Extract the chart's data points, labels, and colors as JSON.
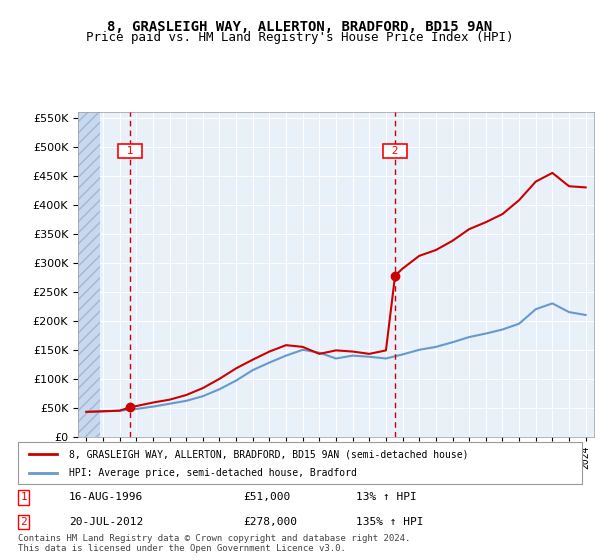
{
  "title1": "8, GRASLEIGH WAY, ALLERTON, BRADFORD, BD15 9AN",
  "title2": "Price paid vs. HM Land Registry's House Price Index (HPI)",
  "legend1": "8, GRASLEIGH WAY, ALLERTON, BRADFORD, BD15 9AN (semi-detached house)",
  "legend2": "HPI: Average price, semi-detached house, Bradford",
  "footer": "Contains HM Land Registry data © Crown copyright and database right 2024.\nThis data is licensed under the Open Government Licence v3.0.",
  "sale1_label": "1",
  "sale1_date": "16-AUG-1996",
  "sale1_price": "£51,000",
  "sale1_hpi": "13% ↑ HPI",
  "sale1_year": 1996.62,
  "sale1_value": 51000,
  "sale2_label": "2",
  "sale2_date": "20-JUL-2012",
  "sale2_price": "£278,000",
  "sale2_hpi": "135% ↑ HPI",
  "sale2_year": 2012.55,
  "sale2_value": 278000,
  "hpi_years": [
    1994,
    1995,
    1996,
    1997,
    1998,
    1999,
    2000,
    2001,
    2002,
    2003,
    2004,
    2005,
    2006,
    2007,
    2008,
    2009,
    2010,
    2011,
    2012,
    2013,
    2014,
    2015,
    2016,
    2017,
    2018,
    2019,
    2020,
    2021,
    2022,
    2023,
    2024
  ],
  "hpi_values": [
    43000,
    44000,
    45000,
    48000,
    52000,
    57000,
    62000,
    70000,
    82000,
    97000,
    115000,
    128000,
    140000,
    150000,
    145000,
    135000,
    140000,
    138000,
    135000,
    142000,
    150000,
    155000,
    163000,
    172000,
    178000,
    185000,
    195000,
    220000,
    230000,
    215000,
    210000
  ],
  "red_years": [
    1994,
    1995,
    1996,
    1996.62,
    1997,
    1998,
    1999,
    2000,
    2001,
    2002,
    2003,
    2004,
    2005,
    2006,
    2007,
    2008,
    2009,
    2010,
    2011,
    2012,
    2012.55,
    2013,
    2014,
    2015,
    2016,
    2017,
    2018,
    2019,
    2020,
    2021,
    2022,
    2023,
    2024
  ],
  "red_values": [
    43000,
    44000,
    45000,
    51000,
    53000,
    59000,
    64000,
    72000,
    84000,
    100000,
    118000,
    133000,
    147000,
    158000,
    155000,
    143000,
    149000,
    147000,
    143000,
    149000,
    278000,
    290000,
    312000,
    322000,
    338000,
    358000,
    370000,
    384000,
    408000,
    440000,
    455000,
    432000,
    430000
  ],
  "ylim_max": 560000,
  "ylim_min": 0,
  "bg_color": "#dce9f5",
  "plot_bg": "#e8f0fa",
  "hatch_color": "#c0d0e8",
  "red_color": "#cc0000",
  "blue_color": "#6699cc",
  "grid_color": "#ffffff",
  "vline_color": "#cc0000"
}
